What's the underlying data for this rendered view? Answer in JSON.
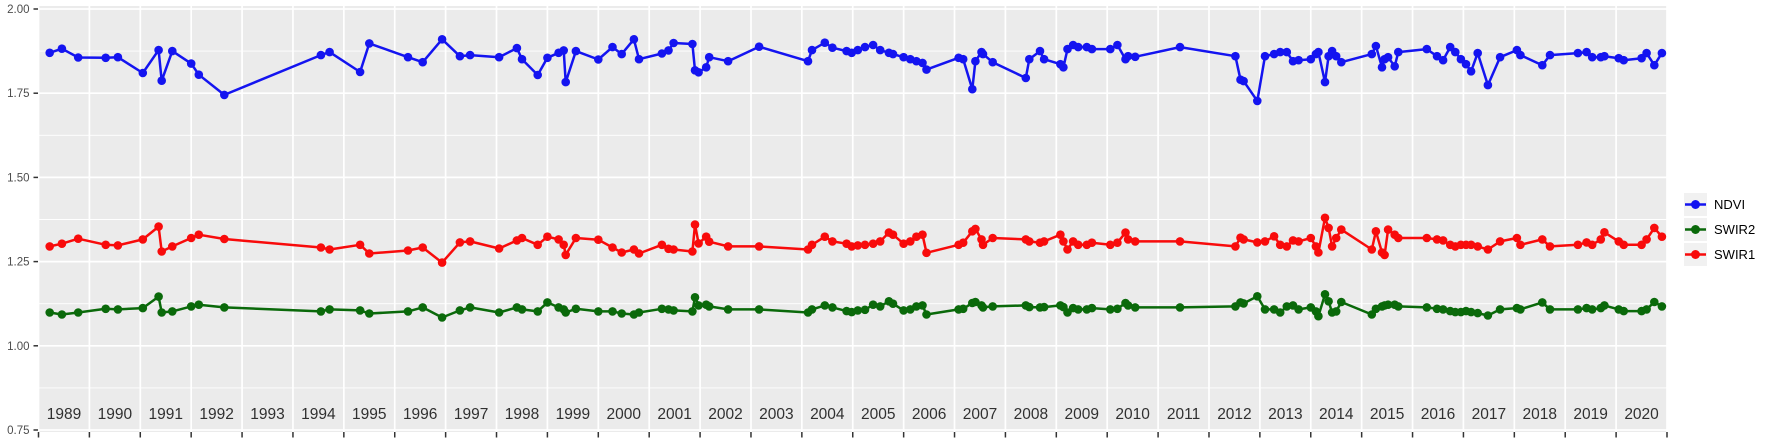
{
  "chart_data": {
    "type": "line",
    "title": "",
    "xlabel": "",
    "ylabel": "",
    "x_domain": [
      1989,
      2021
    ],
    "y_domain": [
      0.75,
      2.0
    ],
    "y_tick_labels": [
      "0.75",
      "1.00",
      "1.25",
      "1.50",
      "1.75",
      "2.00"
    ],
    "y_tick_values": [
      0.75,
      1.0,
      1.25,
      1.5,
      1.75,
      2.0
    ],
    "y_minor_values": [
      0.875,
      1.125,
      1.375,
      1.625,
      1.875
    ],
    "x_tick_years": [
      1989,
      1990,
      1991,
      1992,
      1993,
      1994,
      1995,
      1996,
      1997,
      1998,
      1999,
      2000,
      2001,
      2002,
      2003,
      2004,
      2005,
      2006,
      2007,
      2008,
      2009,
      2010,
      2011,
      2012,
      2013,
      2014,
      2015,
      2016,
      2017,
      2018,
      2019,
      2020,
      2021
    ],
    "x_year_labels": [
      "1989",
      "1990",
      "1991",
      "1992",
      "1993",
      "1994",
      "1995",
      "1996",
      "1997",
      "1998",
      "1999",
      "2000",
      "2001",
      "2002",
      "2003",
      "2004",
      "2005",
      "2006",
      "2007",
      "2008",
      "2009",
      "2010",
      "2011",
      "2012",
      "2013",
      "2014",
      "2015",
      "2016",
      "2017",
      "2018",
      "2019",
      "2020"
    ],
    "panel_bg": "#EBEBEB",
    "grid_color": "#FFFFFF",
    "tick_color": "#333333",
    "y_label_color": "#4D4D4D",
    "year_label_color": "#303030",
    "legend_key_bg": "#F1F1F1",
    "legend_position": "right",
    "series": [
      {
        "name": "NDVI",
        "color": "#1414F0",
        "column": 1
      },
      {
        "name": "SWIR2",
        "color": "#0A690A",
        "column": 2
      },
      {
        "name": "SWIR1",
        "color": "#F80B0B",
        "column": 3
      }
    ],
    "series_columns": [
      "year",
      "NDVI",
      "SWIR2",
      "SWIR1"
    ],
    "observations": [
      [
        1989.22,
        1.87,
        1.099,
        1.295
      ],
      [
        1989.46,
        1.882,
        1.093,
        1.303
      ],
      [
        1989.78,
        1.856,
        1.099,
        1.318
      ],
      [
        1990.32,
        1.855,
        1.11,
        1.3
      ],
      [
        1990.56,
        1.857,
        1.108,
        1.298
      ],
      [
        1991.05,
        1.81,
        1.112,
        1.316
      ],
      [
        1991.36,
        1.878,
        1.146,
        1.354
      ],
      [
        1991.42,
        1.787,
        1.099,
        1.28
      ],
      [
        1991.63,
        1.875,
        1.102,
        1.295
      ],
      [
        1992.0,
        1.838,
        1.117,
        1.32
      ],
      [
        1992.15,
        1.805,
        1.122,
        1.33
      ],
      [
        1992.65,
        1.745,
        1.114,
        1.317
      ],
      [
        1994.55,
        1.863,
        1.102,
        1.292
      ],
      [
        1994.72,
        1.872,
        1.108,
        1.286
      ],
      [
        1995.32,
        1.813,
        1.105,
        1.3
      ],
      [
        1995.5,
        1.898,
        1.096,
        1.274
      ],
      [
        1996.26,
        1.857,
        1.102,
        1.283
      ],
      [
        1996.55,
        1.842,
        1.114,
        1.292
      ],
      [
        1996.93,
        1.91,
        1.084,
        1.247
      ],
      [
        1997.28,
        1.86,
        1.105,
        1.307
      ],
      [
        1997.48,
        1.863,
        1.114,
        1.31
      ],
      [
        1998.05,
        1.857,
        1.099,
        1.289
      ],
      [
        1998.4,
        1.884,
        1.114,
        1.313
      ],
      [
        1998.5,
        1.851,
        1.108,
        1.32
      ],
      [
        1998.81,
        1.804,
        1.102,
        1.3
      ],
      [
        1999.0,
        1.855,
        1.129,
        1.324
      ],
      [
        1999.22,
        1.87,
        1.114,
        1.316
      ],
      [
        1999.32,
        1.877,
        1.108,
        1.3
      ],
      [
        1999.36,
        1.783,
        1.099,
        1.27
      ],
      [
        1999.56,
        1.875,
        1.11,
        1.32
      ],
      [
        2000.0,
        1.85,
        1.102,
        1.315
      ],
      [
        2000.28,
        1.887,
        1.102,
        1.292
      ],
      [
        2000.46,
        1.866,
        1.096,
        1.277
      ],
      [
        2000.7,
        1.91,
        1.093,
        1.286
      ],
      [
        2000.8,
        1.851,
        1.099,
        1.274
      ],
      [
        2001.25,
        1.868,
        1.11,
        1.3
      ],
      [
        2001.38,
        1.877,
        1.108,
        1.288
      ],
      [
        2001.48,
        1.899,
        1.105,
        1.286
      ],
      [
        2001.85,
        1.896,
        1.102,
        1.28
      ],
      [
        2001.9,
        1.818,
        1.144,
        1.36
      ],
      [
        2001.97,
        1.812,
        1.12,
        1.304
      ],
      [
        2002.12,
        1.827,
        1.122,
        1.324
      ],
      [
        2002.18,
        1.857,
        1.117,
        1.309
      ],
      [
        2002.55,
        1.845,
        1.108,
        1.295
      ],
      [
        2003.16,
        1.888,
        1.108,
        1.295
      ],
      [
        2004.12,
        1.845,
        1.099,
        1.286
      ],
      [
        2004.2,
        1.878,
        1.108,
        1.3
      ],
      [
        2004.45,
        1.9,
        1.12,
        1.324
      ],
      [
        2004.6,
        1.885,
        1.114,
        1.31
      ],
      [
        2004.88,
        1.875,
        1.103,
        1.303
      ],
      [
        2004.98,
        1.87,
        1.1,
        1.295
      ],
      [
        2005.1,
        1.878,
        1.105,
        1.298
      ],
      [
        2005.24,
        1.887,
        1.107,
        1.3
      ],
      [
        2005.4,
        1.893,
        1.122,
        1.303
      ],
      [
        2005.54,
        1.878,
        1.117,
        1.31
      ],
      [
        2005.71,
        1.87,
        1.132,
        1.336
      ],
      [
        2005.79,
        1.866,
        1.125,
        1.33
      ],
      [
        2006.0,
        1.857,
        1.105,
        1.303
      ],
      [
        2006.13,
        1.851,
        1.108,
        1.31
      ],
      [
        2006.25,
        1.845,
        1.117,
        1.324
      ],
      [
        2006.37,
        1.84,
        1.12,
        1.33
      ],
      [
        2006.45,
        1.82,
        1.093,
        1.276
      ],
      [
        2007.08,
        1.855,
        1.108,
        1.3
      ],
      [
        2007.17,
        1.851,
        1.11,
        1.306
      ],
      [
        2007.35,
        1.762,
        1.127,
        1.34
      ],
      [
        2007.41,
        1.845,
        1.13,
        1.347
      ],
      [
        2007.53,
        1.872,
        1.12,
        1.316
      ],
      [
        2007.56,
        1.866,
        1.114,
        1.3
      ],
      [
        2007.75,
        1.842,
        1.117,
        1.32
      ],
      [
        2008.4,
        1.795,
        1.12,
        1.316
      ],
      [
        2008.47,
        1.851,
        1.115,
        1.31
      ],
      [
        2008.68,
        1.875,
        1.114,
        1.306
      ],
      [
        2008.76,
        1.851,
        1.115,
        1.31
      ],
      [
        2009.08,
        1.836,
        1.12,
        1.33
      ],
      [
        2009.14,
        1.827,
        1.115,
        1.31
      ],
      [
        2009.22,
        1.881,
        1.099,
        1.286
      ],
      [
        2009.33,
        1.893,
        1.112,
        1.31
      ],
      [
        2009.43,
        1.887,
        1.108,
        1.3
      ],
      [
        2009.6,
        1.887,
        1.108,
        1.3
      ],
      [
        2009.7,
        1.881,
        1.112,
        1.306
      ],
      [
        2010.06,
        1.881,
        1.108,
        1.3
      ],
      [
        2010.2,
        1.893,
        1.11,
        1.306
      ],
      [
        2010.36,
        1.851,
        1.127,
        1.336
      ],
      [
        2010.41,
        1.86,
        1.12,
        1.316
      ],
      [
        2010.55,
        1.858,
        1.114,
        1.31
      ],
      [
        2011.43,
        1.887,
        1.114,
        1.31
      ],
      [
        2012.52,
        1.86,
        1.117,
        1.295
      ],
      [
        2012.62,
        1.79,
        1.129,
        1.321
      ],
      [
        2012.68,
        1.786,
        1.126,
        1.316
      ],
      [
        2012.95,
        1.727,
        1.147,
        1.307
      ],
      [
        2013.1,
        1.86,
        1.108,
        1.31
      ],
      [
        2013.28,
        1.866,
        1.108,
        1.325
      ],
      [
        2013.4,
        1.872,
        1.099,
        1.3
      ],
      [
        2013.53,
        1.872,
        1.117,
        1.295
      ],
      [
        2013.65,
        1.845,
        1.12,
        1.313
      ],
      [
        2013.76,
        1.848,
        1.108,
        1.31
      ],
      [
        2014.0,
        1.851,
        1.114,
        1.32
      ],
      [
        2014.1,
        1.866,
        1.102,
        1.295
      ],
      [
        2014.15,
        1.872,
        1.088,
        1.277
      ],
      [
        2014.28,
        1.783,
        1.153,
        1.38
      ],
      [
        2014.35,
        1.86,
        1.132,
        1.35
      ],
      [
        2014.42,
        1.875,
        1.099,
        1.295
      ],
      [
        2014.5,
        1.86,
        1.102,
        1.32
      ],
      [
        2014.6,
        1.842,
        1.13,
        1.345
      ],
      [
        2015.2,
        1.866,
        1.093,
        1.286
      ],
      [
        2015.28,
        1.89,
        1.11,
        1.34
      ],
      [
        2015.4,
        1.827,
        1.117,
        1.277
      ],
      [
        2015.45,
        1.851,
        1.12,
        1.27
      ],
      [
        2015.52,
        1.857,
        1.122,
        1.345
      ],
      [
        2015.65,
        1.83,
        1.122,
        1.33
      ],
      [
        2015.72,
        1.872,
        1.117,
        1.32
      ],
      [
        2016.28,
        1.881,
        1.114,
        1.32
      ],
      [
        2016.48,
        1.86,
        1.11,
        1.316
      ],
      [
        2016.6,
        1.848,
        1.108,
        1.313
      ],
      [
        2016.74,
        1.887,
        1.103,
        1.3
      ],
      [
        2016.84,
        1.872,
        1.1,
        1.295
      ],
      [
        2016.95,
        1.851,
        1.1,
        1.3
      ],
      [
        2017.05,
        1.836,
        1.103,
        1.3
      ],
      [
        2017.15,
        1.815,
        1.1,
        1.3
      ],
      [
        2017.28,
        1.869,
        1.097,
        1.295
      ],
      [
        2017.48,
        1.774,
        1.09,
        1.286
      ],
      [
        2017.72,
        1.857,
        1.108,
        1.31
      ],
      [
        2018.05,
        1.878,
        1.112,
        1.32
      ],
      [
        2018.12,
        1.863,
        1.108,
        1.3
      ],
      [
        2018.55,
        1.833,
        1.129,
        1.316
      ],
      [
        2018.7,
        1.863,
        1.108,
        1.295
      ],
      [
        2019.25,
        1.869,
        1.108,
        1.3
      ],
      [
        2019.42,
        1.872,
        1.112,
        1.307
      ],
      [
        2019.53,
        1.857,
        1.108,
        1.3
      ],
      [
        2019.7,
        1.857,
        1.112,
        1.316
      ],
      [
        2019.77,
        1.86,
        1.12,
        1.337
      ],
      [
        2020.05,
        1.854,
        1.108,
        1.31
      ],
      [
        2020.15,
        1.848,
        1.103,
        1.3
      ],
      [
        2020.5,
        1.854,
        1.103,
        1.3
      ],
      [
        2020.6,
        1.869,
        1.108,
        1.316
      ],
      [
        2020.75,
        1.833,
        1.13,
        1.35
      ],
      [
        2020.9,
        1.869,
        1.117,
        1.324
      ]
    ]
  },
  "legend": {
    "items": [
      {
        "label": "NDVI"
      },
      {
        "label": "SWIR2"
      },
      {
        "label": "SWIR1"
      }
    ]
  }
}
